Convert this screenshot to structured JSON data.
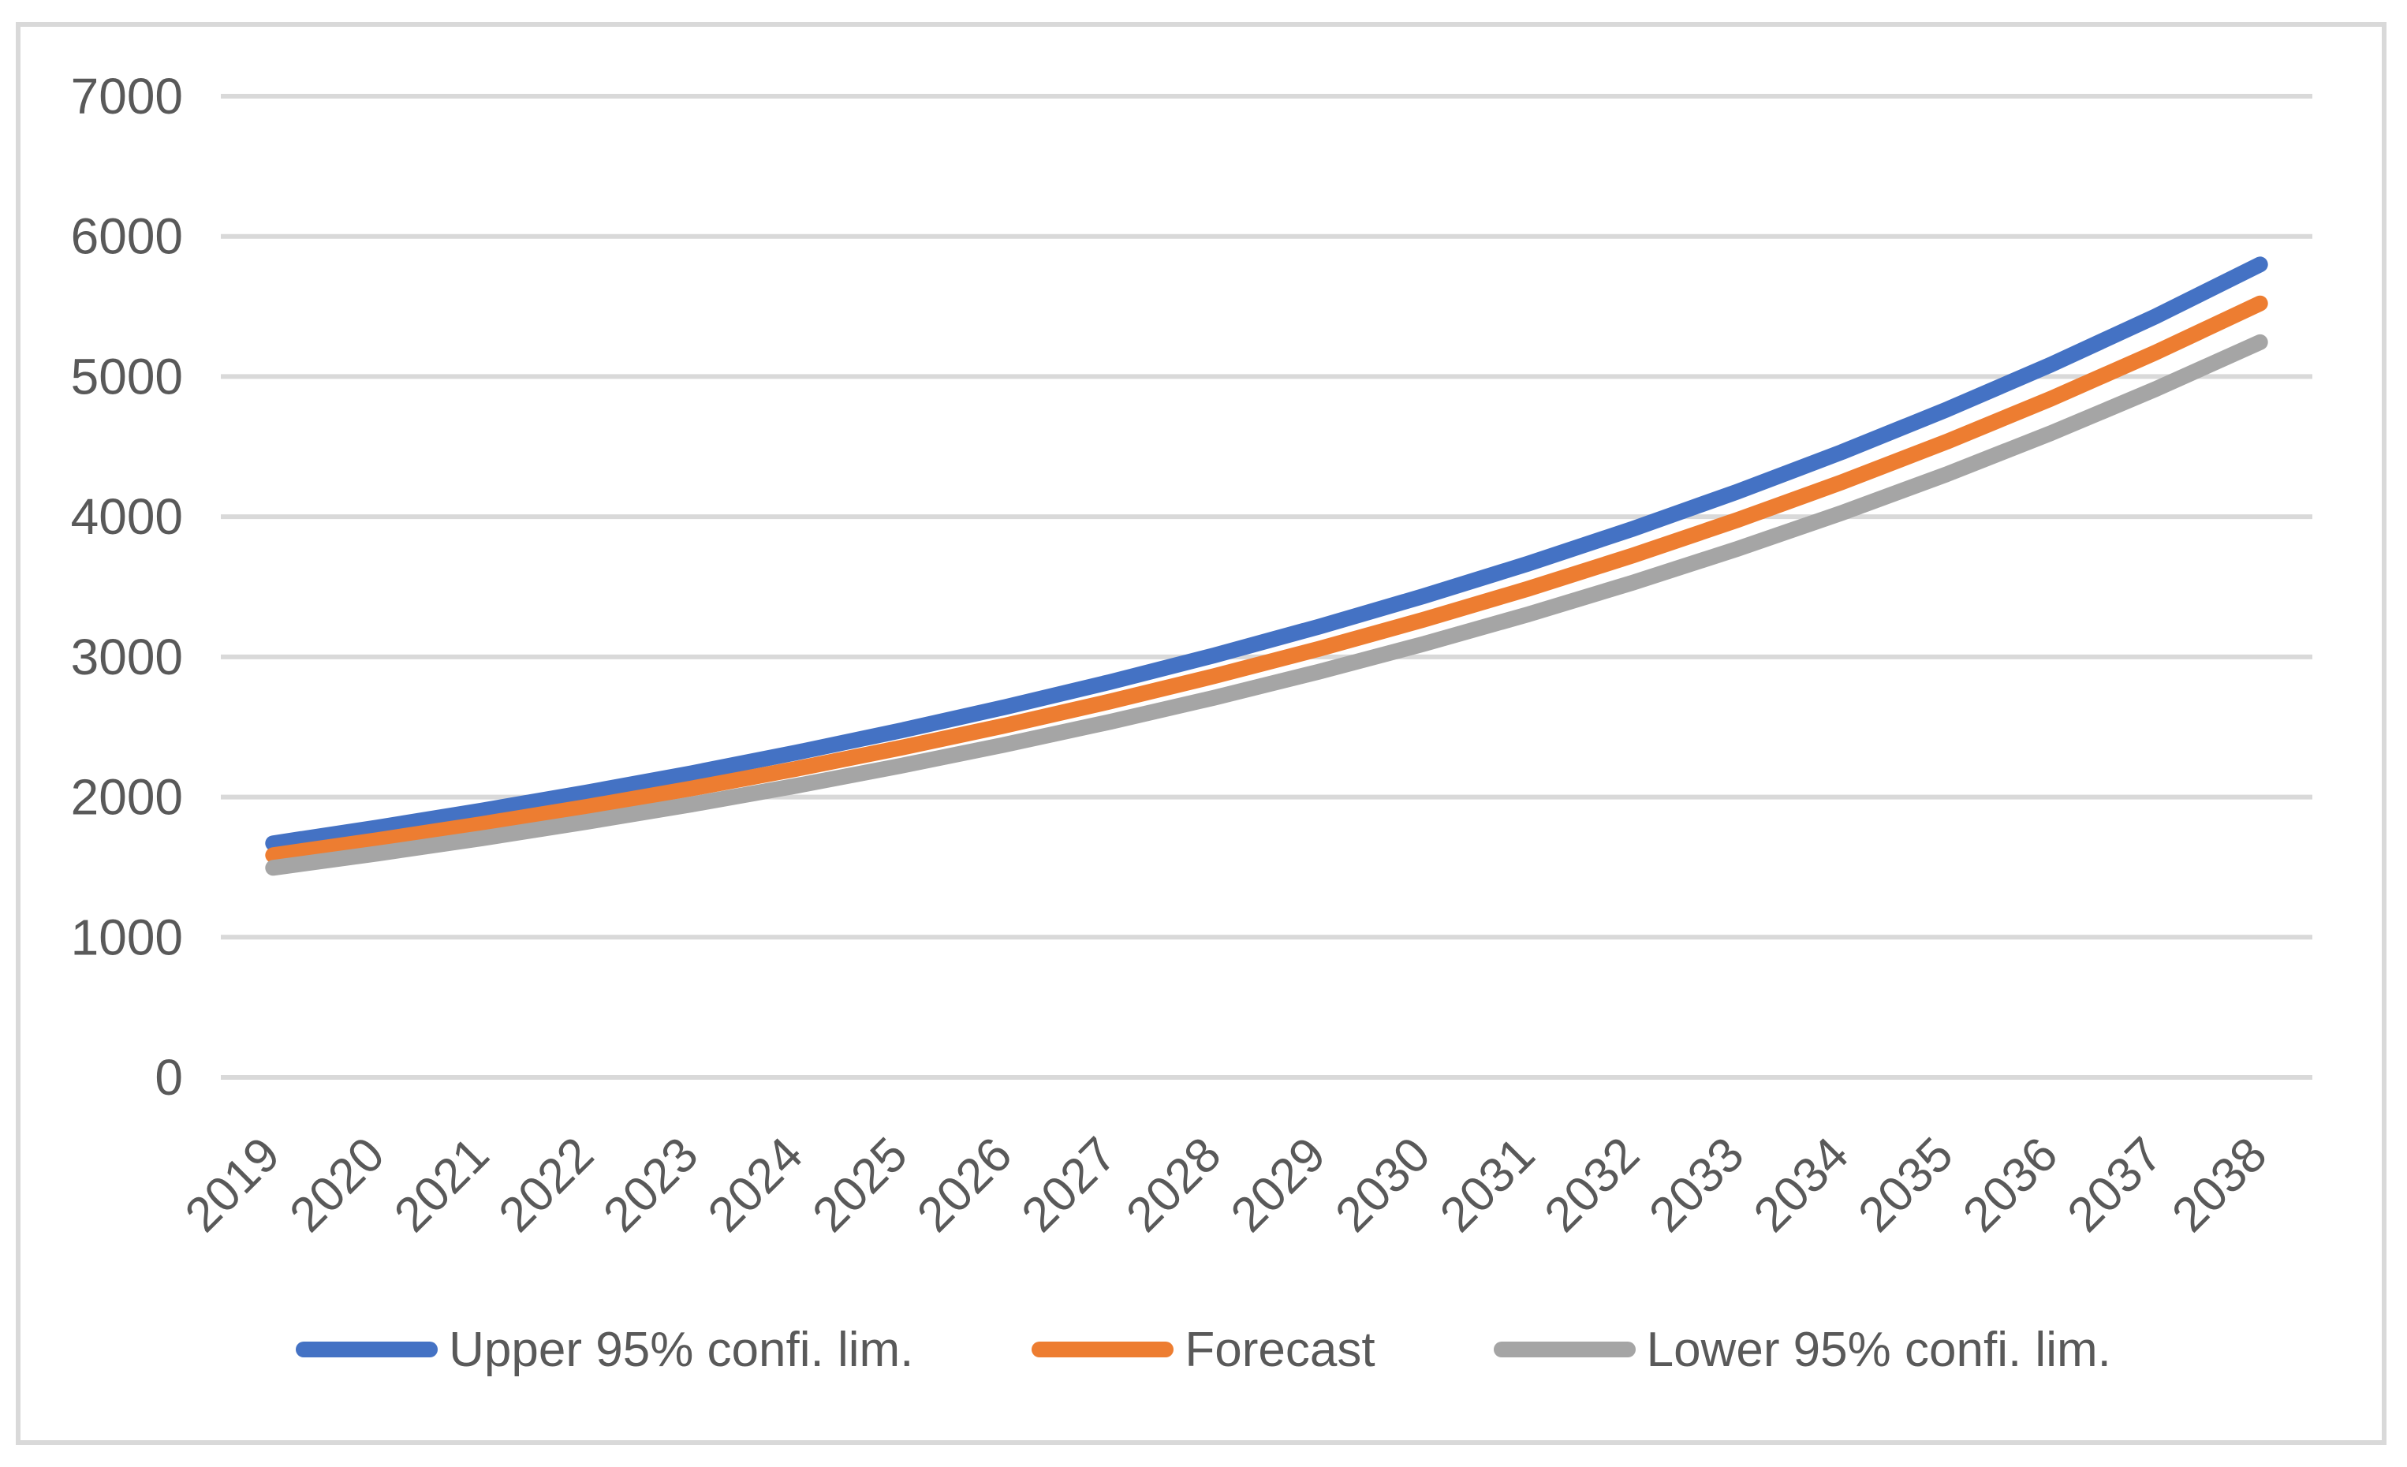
{
  "chart_data": {
    "type": "line",
    "title": "",
    "xlabel": "",
    "ylabel": "",
    "categories": [
      "2019",
      "2020",
      "2021",
      "2022",
      "2023",
      "2024",
      "2025",
      "2026",
      "2027",
      "2028",
      "2029",
      "2030",
      "2031",
      "2032",
      "2033",
      "2034",
      "2035",
      "2036",
      "2037",
      "2038"
    ],
    "series": [
      {
        "key": "upper-95-confidence-limit",
        "name": "Upper 95% confi. lim.",
        "color": "#4472C4",
        "values": [
          1670,
          1783,
          1904,
          2033,
          2170,
          2317,
          2474,
          2642,
          2820,
          3011,
          3215,
          3433,
          3665,
          3913,
          4178,
          4461,
          4763,
          5085,
          5429,
          5800
        ]
      },
      {
        "key": "forecast",
        "name": "Forecast",
        "color": "#ED7D31",
        "values": [
          1585,
          1693,
          1808,
          1930,
          2061,
          2201,
          2351,
          2510,
          2681,
          2863,
          3057,
          3265,
          3486,
          3723,
          3976,
          4246,
          4534,
          4842,
          5171,
          5522
        ]
      },
      {
        "key": "lower-95-confidence-limit",
        "name": "Lower 95% confi. lim.",
        "color": "#A5A5A5",
        "values": [
          1495,
          1597,
          1706,
          1823,
          1947,
          2080,
          2222,
          2374,
          2536,
          2709,
          2894,
          3092,
          3303,
          3529,
          3770,
          4027,
          4302,
          4596,
          4910,
          5245
        ]
      }
    ],
    "ylim": [
      0,
      7000
    ],
    "ytick_step": 1000,
    "grid": true,
    "legend_position": "bottom"
  },
  "colors": {
    "background": "#FFFFFF",
    "gridline": "#D9D9D9",
    "figure_border": "#D9D9D9",
    "axis_text": "#595959"
  }
}
